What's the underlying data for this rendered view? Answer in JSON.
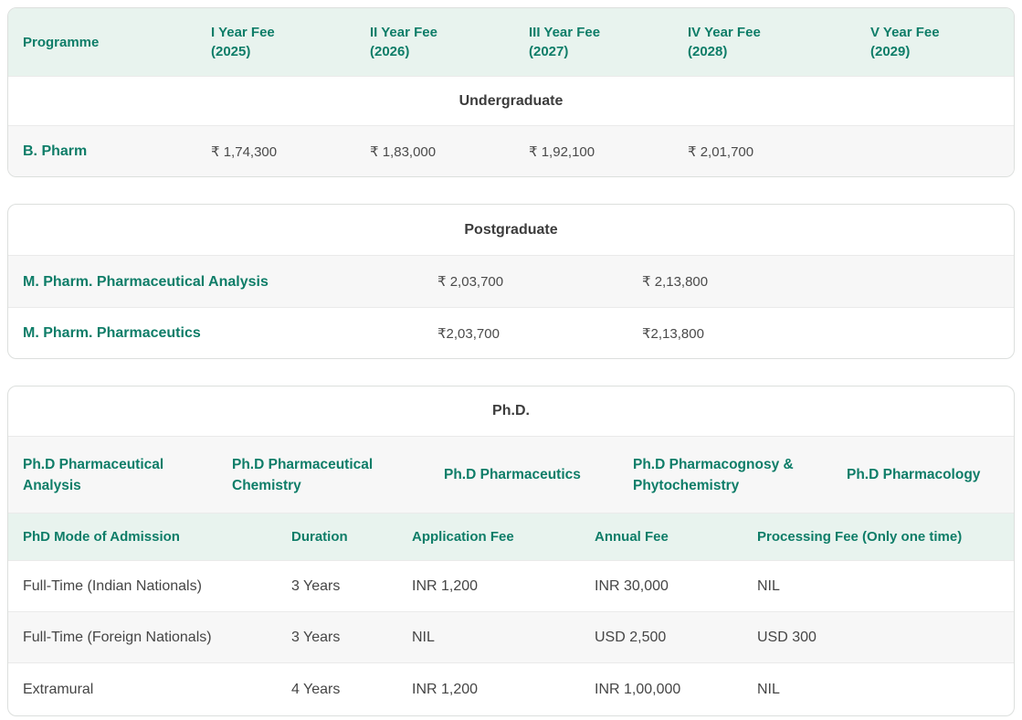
{
  "colors": {
    "accent_teal": "#0e7d68",
    "header_mint": "#e8f3ee",
    "stripe_gray": "#f7f7f7",
    "title_dark": "#3c3c3c",
    "body_text": "#4a4a4a",
    "card_border": "#dcdfdd"
  },
  "ug": {
    "col_programme": "Programme",
    "years": [
      {
        "label": "I Year Fee",
        "year": "(2025)"
      },
      {
        "label": "II Year Fee",
        "year": "(2026)"
      },
      {
        "label": "III Year Fee",
        "year": "(2027)"
      },
      {
        "label": "IV Year Fee",
        "year": "(2028)"
      },
      {
        "label": "V Year Fee",
        "year": "(2029)"
      }
    ],
    "section": "Undergraduate",
    "rows": [
      {
        "programme": "B. Pharm",
        "fees": [
          "₹ 1,74,300",
          "₹ 1,83,000",
          "₹ 1,92,100",
          "₹ 2,01,700",
          ""
        ]
      }
    ]
  },
  "pg": {
    "section": "Postgraduate",
    "rows": [
      {
        "programme": "M. Pharm. Pharmaceutical Analysis",
        "fees": [
          "₹ 2,03,700",
          "₹ 2,13,800"
        ]
      },
      {
        "programme": "M. Pharm. Pharmaceutics",
        "fees": [
          "₹2,03,700",
          "₹2,13,800"
        ]
      }
    ]
  },
  "phd": {
    "section": "Ph.D.",
    "programmes": [
      "Ph.D Pharmaceutical Analysis",
      "Ph.D Pharmaceutical Chemistry",
      "Ph.D Pharmaceutics",
      "Ph.D Pharmacognosy & Phytochemistry",
      "Ph.D Pharmacology"
    ],
    "headers": [
      "PhD Mode of Admission",
      "Duration",
      "Application Fee",
      "Annual Fee",
      "Processing Fee (Only one time)"
    ],
    "rows": [
      {
        "mode": "Full-Time (Indian Nationals)",
        "duration": "3 Years",
        "application_fee": "INR 1,200",
        "annual_fee": "INR 30,000",
        "processing_fee": "NIL"
      },
      {
        "mode": "Full-Time (Foreign Nationals)",
        "duration": "3 Years",
        "application_fee": "NIL",
        "annual_fee": "USD 2,500",
        "processing_fee": "USD 300"
      },
      {
        "mode": "Extramural",
        "duration": "4 Years",
        "application_fee": "INR 1,200",
        "annual_fee": "INR 1,00,000",
        "processing_fee": "NIL"
      }
    ]
  }
}
